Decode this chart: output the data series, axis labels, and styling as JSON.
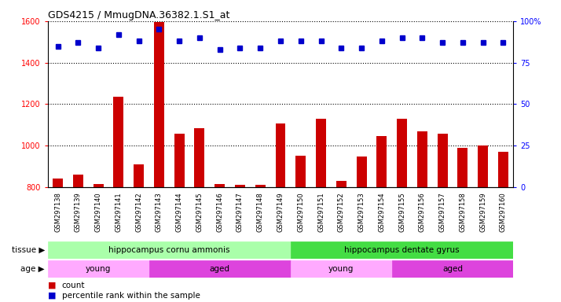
{
  "title": "GDS4215 / MmugDNA.36382.1.S1_at",
  "samples": [
    "GSM297138",
    "GSM297139",
    "GSM297140",
    "GSM297141",
    "GSM297142",
    "GSM297143",
    "GSM297144",
    "GSM297145",
    "GSM297146",
    "GSM297147",
    "GSM297148",
    "GSM297149",
    "GSM297150",
    "GSM297151",
    "GSM297152",
    "GSM297153",
    "GSM297154",
    "GSM297155",
    "GSM297156",
    "GSM297157",
    "GSM297158",
    "GSM297159",
    "GSM297160"
  ],
  "counts": [
    840,
    860,
    815,
    1235,
    910,
    1595,
    1055,
    1085,
    815,
    810,
    810,
    1105,
    950,
    1130,
    830,
    945,
    1045,
    1130,
    1070,
    1055,
    990,
    1000,
    970
  ],
  "percentiles": [
    85,
    87,
    84,
    92,
    88,
    95,
    88,
    90,
    83,
    84,
    84,
    88,
    88,
    88,
    84,
    84,
    88,
    90,
    90,
    87,
    87,
    87,
    87
  ],
  "ylim_left": [
    800,
    1600
  ],
  "ylim_right": [
    0,
    100
  ],
  "yticks_left": [
    800,
    1000,
    1200,
    1400,
    1600
  ],
  "yticks_right": [
    0,
    25,
    50,
    75,
    100
  ],
  "bar_color": "#cc0000",
  "dot_color": "#0000cc",
  "plot_bg": "#ffffff",
  "tissue_groups": [
    {
      "label": "hippocampus cornu ammonis",
      "start": 0,
      "end": 12,
      "color": "#aaffaa"
    },
    {
      "label": "hippocampus dentate gyrus",
      "start": 12,
      "end": 23,
      "color": "#44dd44"
    }
  ],
  "age_groups": [
    {
      "label": "young",
      "start": 0,
      "end": 5,
      "color": "#ffaaff"
    },
    {
      "label": "aged",
      "start": 5,
      "end": 12,
      "color": "#dd44dd"
    },
    {
      "label": "young",
      "start": 12,
      "end": 17,
      "color": "#ffaaff"
    },
    {
      "label": "aged",
      "start": 17,
      "end": 23,
      "color": "#dd44dd"
    }
  ],
  "legend_count_color": "#cc0000",
  "legend_dot_color": "#0000cc"
}
